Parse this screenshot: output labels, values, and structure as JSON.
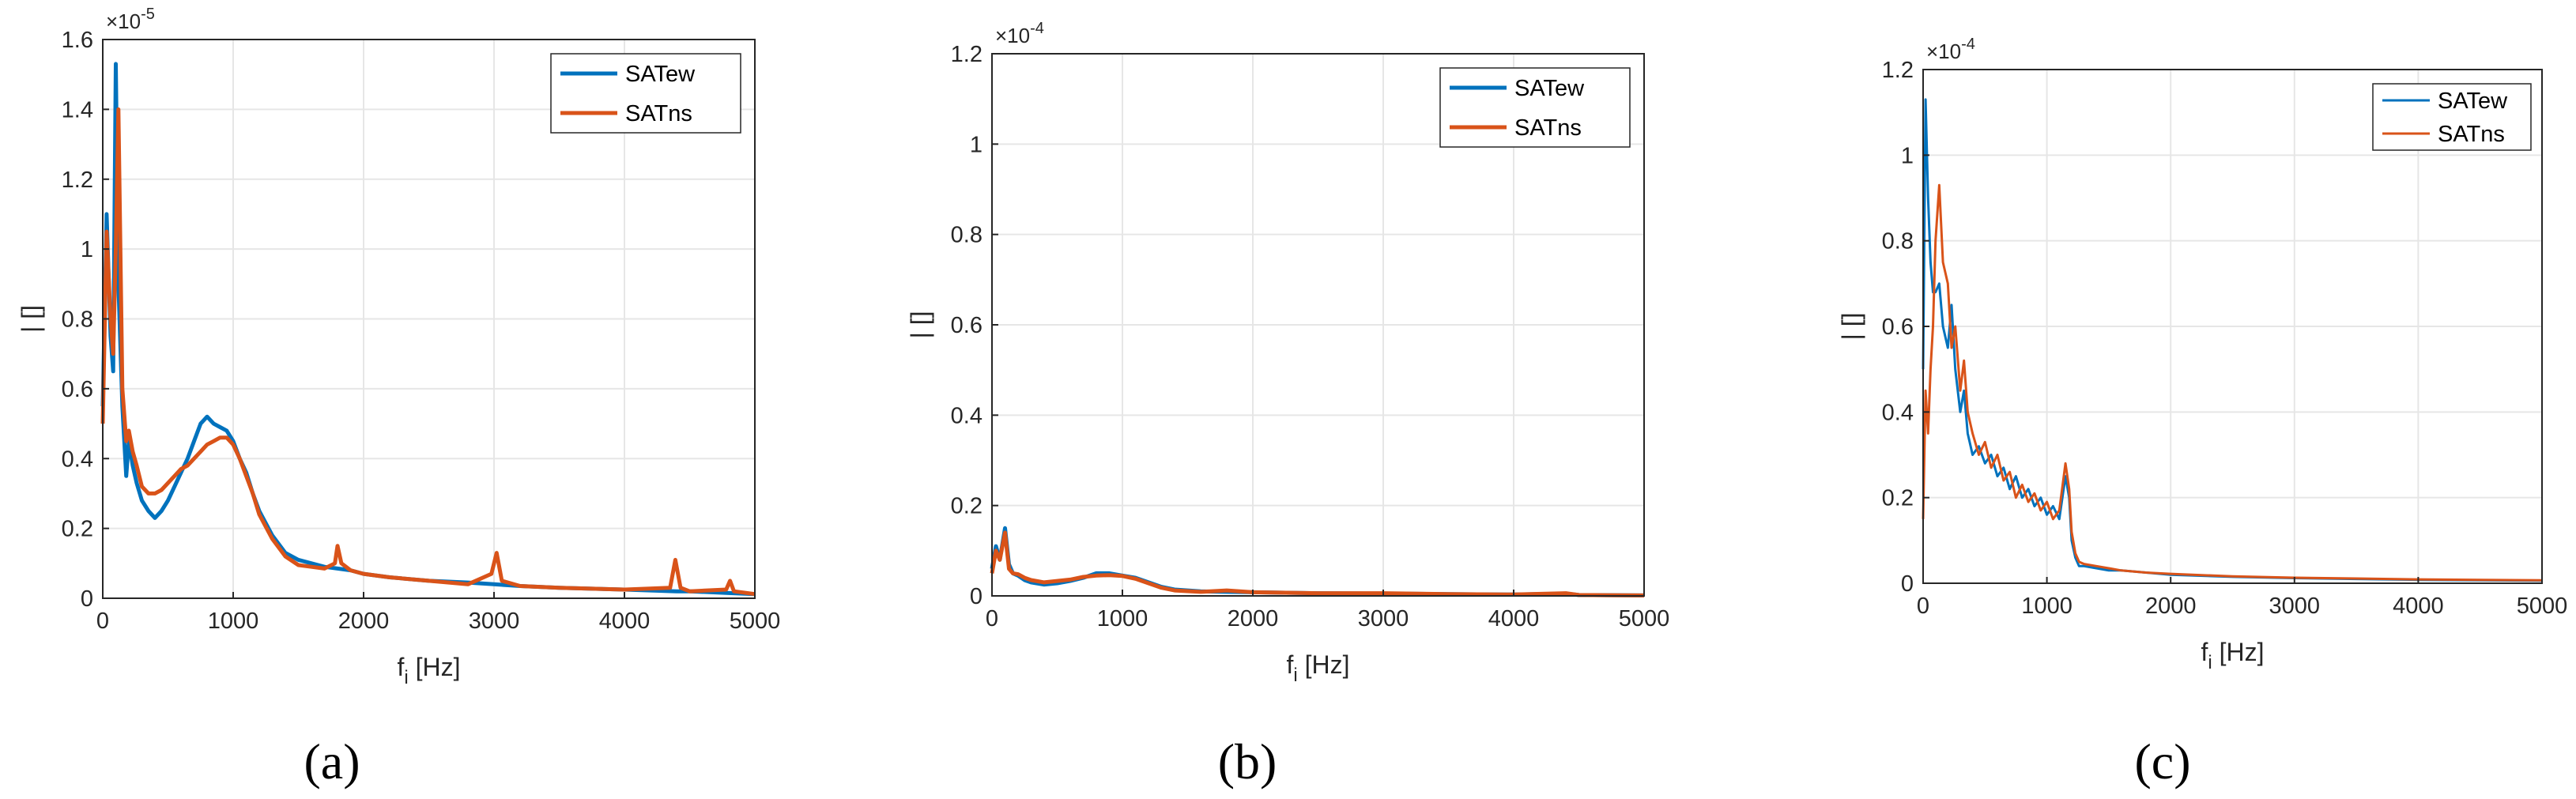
{
  "chart_data": [
    {
      "type": "line",
      "panel_label": "(a)",
      "xlabel": "f",
      "xlabel_sub": "i",
      "xlabel_unit": " [Hz]",
      "ylabel": "| []",
      "xlim": [
        0,
        5000
      ],
      "ylim": [
        0,
        1.6
      ],
      "x_ticks": [
        0,
        1000,
        2000,
        3000,
        4000,
        5000
      ],
      "y_ticks": [
        0,
        0.2,
        0.4,
        0.6,
        0.8,
        1,
        1.2,
        1.4,
        1.6
      ],
      "y_multiplier_base": "×10",
      "y_multiplier_exp": "-5",
      "grid": true,
      "legend_position": "top-right",
      "series": [
        {
          "name": "SATew",
          "color": "#0072BD",
          "x": [
            0,
            30,
            60,
            80,
            100,
            120,
            150,
            180,
            200,
            230,
            260,
            300,
            350,
            400,
            450,
            500,
            550,
            600,
            650,
            700,
            750,
            800,
            850,
            900,
            950,
            1000,
            1050,
            1100,
            1150,
            1200,
            1300,
            1400,
            1500,
            1600,
            1700,
            1800,
            1900,
            2000,
            2200,
            2500,
            2800,
            3000,
            3200,
            3500,
            4000,
            4400,
            4500,
            4800,
            5000
          ],
          "values": [
            0.55,
            1.1,
            0.75,
            0.65,
            1.53,
            0.9,
            0.55,
            0.35,
            0.45,
            0.38,
            0.33,
            0.28,
            0.25,
            0.23,
            0.25,
            0.28,
            0.32,
            0.36,
            0.4,
            0.45,
            0.5,
            0.52,
            0.5,
            0.49,
            0.48,
            0.45,
            0.4,
            0.36,
            0.3,
            0.25,
            0.18,
            0.13,
            0.11,
            0.1,
            0.09,
            0.085,
            0.08,
            0.07,
            0.06,
            0.05,
            0.045,
            0.04,
            0.035,
            0.03,
            0.025,
            0.02,
            0.02,
            0.015,
            0.012
          ]
        },
        {
          "name": "SATns",
          "color": "#D95319",
          "x": [
            0,
            30,
            60,
            80,
            100,
            120,
            150,
            180,
            200,
            230,
            260,
            300,
            350,
            400,
            450,
            500,
            550,
            600,
            650,
            700,
            750,
            800,
            850,
            900,
            950,
            1000,
            1050,
            1100,
            1150,
            1200,
            1300,
            1400,
            1500,
            1600,
            1700,
            1780,
            1800,
            1830,
            1900,
            2000,
            2200,
            2500,
            2800,
            2980,
            3020,
            3060,
            3200,
            3500,
            4000,
            4350,
            4390,
            4430,
            4500,
            4780,
            4810,
            4840,
            5000
          ],
          "values": [
            0.5,
            1.05,
            0.8,
            0.7,
            1.0,
            1.4,
            0.6,
            0.45,
            0.48,
            0.42,
            0.38,
            0.32,
            0.3,
            0.3,
            0.31,
            0.33,
            0.35,
            0.37,
            0.38,
            0.4,
            0.42,
            0.44,
            0.45,
            0.46,
            0.46,
            0.44,
            0.4,
            0.35,
            0.3,
            0.24,
            0.17,
            0.12,
            0.095,
            0.09,
            0.085,
            0.1,
            0.15,
            0.1,
            0.08,
            0.07,
            0.06,
            0.05,
            0.04,
            0.07,
            0.13,
            0.05,
            0.035,
            0.03,
            0.025,
            0.03,
            0.11,
            0.03,
            0.02,
            0.025,
            0.05,
            0.02,
            0.012
          ]
        }
      ]
    },
    {
      "type": "line",
      "panel_label": "(b)",
      "xlabel": "f",
      "xlabel_sub": "i",
      "xlabel_unit": " [Hz]",
      "ylabel": "| []",
      "xlim": [
        0,
        5000
      ],
      "ylim": [
        0,
        1.2
      ],
      "x_ticks": [
        0,
        1000,
        2000,
        3000,
        4000,
        5000
      ],
      "y_ticks": [
        0,
        0.2,
        0.4,
        0.6,
        0.8,
        1,
        1.2
      ],
      "y_multiplier_base": "×10",
      "y_multiplier_exp": "-4",
      "grid": true,
      "legend_position": "top-right",
      "series": [
        {
          "name": "SATew",
          "color": "#0072BD",
          "x": [
            0,
            30,
            60,
            100,
            130,
            160,
            200,
            250,
            300,
            400,
            500,
            600,
            700,
            800,
            900,
            1000,
            1100,
            1200,
            1300,
            1400,
            1600,
            1800,
            2000,
            2500,
            3000,
            3500,
            4000,
            4400,
            4500,
            5000
          ],
          "values": [
            0.06,
            0.11,
            0.08,
            0.15,
            0.07,
            0.05,
            0.045,
            0.035,
            0.03,
            0.025,
            0.028,
            0.033,
            0.04,
            0.05,
            0.05,
            0.045,
            0.04,
            0.03,
            0.02,
            0.014,
            0.01,
            0.009,
            0.008,
            0.006,
            0.005,
            0.004,
            0.003,
            0.005,
            0.002,
            0.001
          ]
        },
        {
          "name": "SATns",
          "color": "#D95319",
          "x": [
            0,
            30,
            60,
            100,
            130,
            160,
            200,
            250,
            300,
            400,
            500,
            600,
            700,
            800,
            900,
            1000,
            1100,
            1200,
            1300,
            1400,
            1600,
            1800,
            2000,
            2500,
            3000,
            3500,
            4000,
            4400,
            4500,
            5000
          ],
          "values": [
            0.05,
            0.1,
            0.08,
            0.14,
            0.06,
            0.05,
            0.048,
            0.04,
            0.035,
            0.03,
            0.033,
            0.036,
            0.042,
            0.045,
            0.046,
            0.044,
            0.038,
            0.028,
            0.018,
            0.012,
            0.009,
            0.012,
            0.008,
            0.006,
            0.006,
            0.004,
            0.003,
            0.006,
            0.002,
            0.001
          ]
        }
      ]
    },
    {
      "type": "line",
      "panel_label": "(c)",
      "xlabel": "f",
      "xlabel_sub": "i",
      "xlabel_unit": " [Hz]",
      "ylabel": "| []",
      "xlim": [
        0,
        5000
      ],
      "ylim": [
        0,
        1.2
      ],
      "x_ticks": [
        0,
        1000,
        2000,
        3000,
        4000,
        5000
      ],
      "y_ticks": [
        0,
        0.2,
        0.4,
        0.6,
        0.8,
        1,
        1.2
      ],
      "y_multiplier_base": "×10",
      "y_multiplier_exp": "-4",
      "grid": true,
      "legend_position": "top-right",
      "series": [
        {
          "name": "SATew",
          "color": "#0072BD",
          "x": [
            0,
            20,
            40,
            60,
            80,
            100,
            130,
            160,
            200,
            230,
            260,
            300,
            330,
            360,
            400,
            450,
            500,
            550,
            600,
            650,
            700,
            750,
            800,
            850,
            900,
            950,
            1000,
            1050,
            1100,
            1150,
            1180,
            1200,
            1230,
            1260,
            1300,
            1400,
            1500,
            1600,
            1800,
            2000,
            2500,
            3000,
            3500,
            4000,
            4500,
            5000
          ],
          "values": [
            0.5,
            1.13,
            0.9,
            0.75,
            0.68,
            0.68,
            0.7,
            0.6,
            0.55,
            0.65,
            0.5,
            0.4,
            0.45,
            0.35,
            0.3,
            0.32,
            0.28,
            0.3,
            0.25,
            0.27,
            0.22,
            0.25,
            0.2,
            0.22,
            0.18,
            0.2,
            0.16,
            0.18,
            0.15,
            0.25,
            0.2,
            0.1,
            0.06,
            0.04,
            0.04,
            0.035,
            0.03,
            0.03,
            0.025,
            0.02,
            0.015,
            0.012,
            0.01,
            0.008,
            0.007,
            0.006
          ]
        },
        {
          "name": "SATns",
          "color": "#D95319",
          "x": [
            0,
            20,
            40,
            60,
            80,
            100,
            130,
            160,
            200,
            230,
            260,
            300,
            330,
            360,
            400,
            450,
            500,
            550,
            600,
            650,
            700,
            750,
            800,
            850,
            900,
            950,
            1000,
            1050,
            1100,
            1150,
            1180,
            1200,
            1230,
            1260,
            1300,
            1400,
            1500,
            1600,
            1800,
            2000,
            2500,
            3000,
            3500,
            4000,
            4500,
            5000
          ],
          "values": [
            0.15,
            0.45,
            0.35,
            0.5,
            0.6,
            0.8,
            0.93,
            0.75,
            0.7,
            0.55,
            0.6,
            0.45,
            0.52,
            0.4,
            0.35,
            0.3,
            0.33,
            0.27,
            0.3,
            0.24,
            0.26,
            0.2,
            0.23,
            0.19,
            0.21,
            0.17,
            0.19,
            0.15,
            0.17,
            0.28,
            0.22,
            0.12,
            0.07,
            0.05,
            0.045,
            0.04,
            0.035,
            0.03,
            0.025,
            0.022,
            0.016,
            0.013,
            0.011,
            0.009,
            0.008,
            0.007
          ]
        }
      ]
    }
  ]
}
